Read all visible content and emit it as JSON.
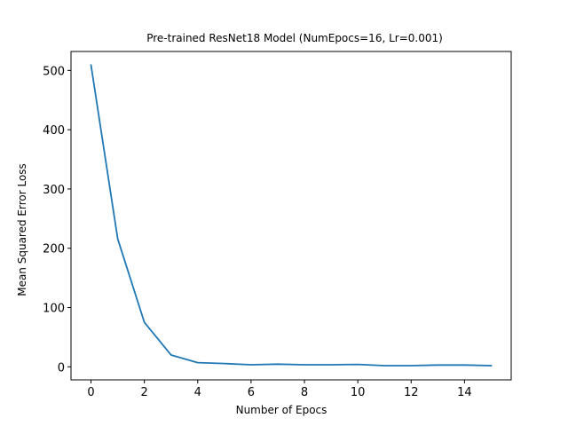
{
  "chart_data": {
    "type": "line",
    "title": "Pre-trained ResNet18 Model (NumEpocs=16, Lr=0.001)",
    "xlabel": "Number of Epocs",
    "ylabel": "Mean Squared Error Loss",
    "xlim": [
      -0.75,
      15.75
    ],
    "ylim": [
      -22,
      532
    ],
    "xticks": [
      0,
      2,
      4,
      6,
      8,
      10,
      12,
      14
    ],
    "yticks": [
      0,
      100,
      200,
      300,
      400,
      500
    ],
    "grid": false,
    "series": [
      {
        "color": "#1f77b4",
        "x": [
          0,
          1,
          2,
          3,
          4,
          5,
          6,
          7,
          8,
          9,
          10,
          11,
          12,
          13,
          14,
          15
        ],
        "y": [
          509,
          216,
          75,
          20,
          7,
          5.5,
          3.5,
          4.5,
          3.5,
          3.5,
          4,
          2,
          2,
          3,
          3,
          2
        ]
      }
    ]
  }
}
